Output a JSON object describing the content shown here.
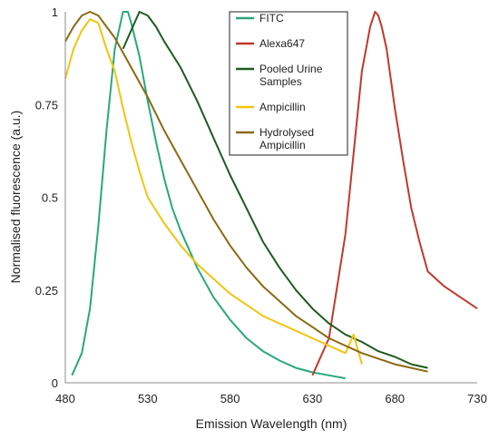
{
  "chart_data": {
    "type": "line",
    "xlabel": "Emission Wavelength (nm)",
    "ylabel": "Normalised fluorescence (a.u.)",
    "xlim": [
      480,
      730
    ],
    "ylim": [
      0,
      1
    ],
    "xticks": [
      "480",
      "530",
      "580",
      "630",
      "680",
      "730"
    ],
    "yticks": [
      "0",
      "0.25",
      "0.5",
      "0.75",
      "1"
    ],
    "grid": false,
    "legend_position": "top-right",
    "series": [
      {
        "name": "FITC",
        "color": "#2aa87a",
        "x": [
          484,
          490,
          495,
          500,
          505,
          510,
          515,
          518,
          520,
          525,
          530,
          535,
          540,
          545,
          550,
          560,
          570,
          580,
          590,
          600,
          610,
          620,
          630,
          640,
          650
        ],
        "y": [
          0.02,
          0.08,
          0.2,
          0.42,
          0.68,
          0.9,
          1.0,
          1.0,
          0.97,
          0.88,
          0.76,
          0.65,
          0.55,
          0.47,
          0.41,
          0.31,
          0.23,
          0.17,
          0.12,
          0.085,
          0.06,
          0.04,
          0.028,
          0.02,
          0.012
        ]
      },
      {
        "name": "Alexa647",
        "color": "#c0392b",
        "x": [
          630,
          640,
          650,
          655,
          660,
          665,
          668,
          670,
          672,
          675,
          680,
          685,
          690,
          695,
          700,
          710,
          720,
          730
        ],
        "y": [
          0.02,
          0.12,
          0.4,
          0.62,
          0.84,
          0.96,
          1.0,
          0.99,
          0.96,
          0.9,
          0.74,
          0.6,
          0.47,
          0.38,
          0.3,
          0.26,
          0.23,
          0.2
        ]
      },
      {
        "name": "Pooled Urine Samples",
        "color": "#1e5b1e",
        "x": [
          515,
          520,
          525,
          530,
          535,
          540,
          550,
          560,
          570,
          580,
          590,
          600,
          610,
          620,
          630,
          640,
          650,
          660,
          670,
          680,
          690,
          700
        ],
        "y": [
          0.9,
          0.95,
          1.0,
          0.99,
          0.96,
          0.92,
          0.85,
          0.76,
          0.66,
          0.56,
          0.47,
          0.38,
          0.31,
          0.25,
          0.2,
          0.16,
          0.13,
          0.11,
          0.085,
          0.07,
          0.05,
          0.04
        ]
      },
      {
        "name": "Ampicillin",
        "color": "#f1c40f",
        "x": [
          480,
          485,
          490,
          495,
          500,
          505,
          510,
          515,
          520,
          525,
          530,
          540,
          550,
          560,
          570,
          580,
          590,
          600,
          610,
          620,
          630,
          640,
          650,
          655,
          660
        ],
        "y": [
          0.82,
          0.9,
          0.95,
          0.98,
          0.97,
          0.9,
          0.84,
          0.74,
          0.65,
          0.57,
          0.5,
          0.43,
          0.37,
          0.32,
          0.28,
          0.24,
          0.21,
          0.18,
          0.16,
          0.14,
          0.12,
          0.1,
          0.08,
          0.13,
          0.05
        ]
      },
      {
        "name": "Hydrolysed Ampicillin",
        "color": "#8b6914",
        "x": [
          480,
          485,
          490,
          495,
          500,
          505,
          510,
          520,
          530,
          540,
          550,
          560,
          570,
          580,
          590,
          600,
          610,
          620,
          630,
          640,
          650,
          660,
          670,
          680,
          690,
          700
        ],
        "y": [
          0.92,
          0.96,
          0.99,
          1.0,
          0.99,
          0.96,
          0.93,
          0.85,
          0.77,
          0.68,
          0.6,
          0.52,
          0.44,
          0.37,
          0.31,
          0.26,
          0.22,
          0.18,
          0.15,
          0.12,
          0.1,
          0.08,
          0.065,
          0.05,
          0.04,
          0.03
        ]
      }
    ]
  }
}
